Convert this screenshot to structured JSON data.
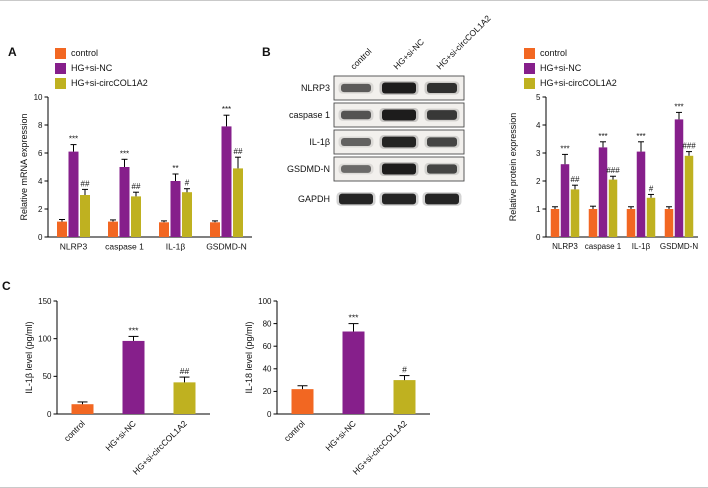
{
  "panel_labels": {
    "a": "A",
    "b": "B",
    "c": "C"
  },
  "colors": {
    "control": "#F26722",
    "hg_si_nc": "#861F8B",
    "hg_si_circcol1a2": "#BFB120",
    "axis": "#000000"
  },
  "legend": {
    "items": [
      {
        "label": "control",
        "color": "#F26722"
      },
      {
        "label": "HG+si-NC",
        "color": "#861F8B"
      },
      {
        "label": "HG+si-circCOL1A2",
        "color": "#BFB120"
      }
    ]
  },
  "western_blot": {
    "column_labels": [
      "control",
      "HG+si-NC",
      "HG+si-circCOL1A2"
    ],
    "rows": [
      {
        "label": "NLRP3",
        "boxed": true,
        "band_intensities": [
          0.55,
          1.0,
          0.85
        ]
      },
      {
        "label": "caspase 1",
        "boxed": true,
        "band_intensities": [
          0.6,
          1.0,
          0.8
        ]
      },
      {
        "label": "IL-1β",
        "boxed": true,
        "band_intensities": [
          0.5,
          0.95,
          0.7
        ]
      },
      {
        "label": "GSDMD-N",
        "boxed": true,
        "band_intensities": [
          0.45,
          1.0,
          0.7
        ]
      },
      {
        "label": "GAPDH",
        "boxed": false,
        "band_intensities": [
          0.95,
          0.95,
          0.95
        ]
      }
    ]
  },
  "chart_data": [
    {
      "id": "panel-A-mrna",
      "type": "bar",
      "title": "",
      "xlabel": "",
      "ylabel": "Relative mRNA expression",
      "ylim": [
        0,
        10
      ],
      "yticks": [
        0,
        2,
        4,
        6,
        8,
        10
      ],
      "grid": false,
      "legend_position": "top-left",
      "categories": [
        "NLRP3",
        "caspase 1",
        "IL-1β",
        "GSDMD-N"
      ],
      "series": [
        {
          "name": "control",
          "color": "#F26722",
          "values": [
            1.1,
            1.1,
            1.05,
            1.05
          ],
          "errors": [
            0.15,
            0.12,
            0.1,
            0.1
          ],
          "annotations": [
            "",
            "",
            "",
            ""
          ]
        },
        {
          "name": "HG+si-NC",
          "color": "#861F8B",
          "values": [
            6.1,
            5.0,
            4.0,
            7.9
          ],
          "errors": [
            0.5,
            0.55,
            0.5,
            0.8
          ],
          "annotations": [
            "***",
            "***",
            "**",
            "***"
          ]
        },
        {
          "name": "HG+si-circCOL1A2",
          "color": "#BFB120",
          "values": [
            3.0,
            2.9,
            3.2,
            4.9
          ],
          "errors": [
            0.4,
            0.3,
            0.25,
            0.8
          ],
          "annotations": [
            "##",
            "##",
            "#",
            "##"
          ]
        }
      ]
    },
    {
      "id": "panel-B-protein",
      "type": "bar",
      "title": "",
      "xlabel": "",
      "ylabel": "Relative protein expression",
      "ylim": [
        0,
        5
      ],
      "yticks": [
        0,
        1,
        2,
        3,
        4,
        5
      ],
      "grid": false,
      "legend_position": "top-left",
      "categories": [
        "NLRP3",
        "caspase 1",
        "IL-1β",
        "GSDMD-N"
      ],
      "series": [
        {
          "name": "control",
          "color": "#F26722",
          "values": [
            1.0,
            1.0,
            1.0,
            1.0
          ],
          "errors": [
            0.08,
            0.1,
            0.08,
            0.08
          ],
          "annotations": [
            "",
            "",
            "",
            ""
          ]
        },
        {
          "name": "HG+si-NC",
          "color": "#861F8B",
          "values": [
            2.6,
            3.2,
            3.05,
            4.2
          ],
          "errors": [
            0.35,
            0.2,
            0.35,
            0.25
          ],
          "annotations": [
            "***",
            "***",
            "***",
            "***"
          ]
        },
        {
          "name": "HG+si-circCOL1A2",
          "color": "#BFB120",
          "values": [
            1.7,
            2.05,
            1.4,
            2.9
          ],
          "errors": [
            0.15,
            0.12,
            0.12,
            0.15
          ],
          "annotations": [
            "##",
            "###",
            "#",
            "###"
          ]
        }
      ]
    },
    {
      "id": "panel-C-il1b",
      "type": "bar",
      "title": "",
      "xlabel": "",
      "ylabel": "IL-1β level (pg/ml)",
      "ylim": [
        0,
        150
      ],
      "yticks": [
        0,
        50,
        100,
        150
      ],
      "grid": false,
      "legend_position": "none",
      "rotate_xlabels": true,
      "categories": [
        "control",
        "HG+si-NC",
        "HG+si-circCOL1A2"
      ],
      "bar_colors": [
        "#F26722",
        "#861F8B",
        "#BFB120"
      ],
      "series": [
        {
          "name": "IL-1β level",
          "values": [
            13,
            97,
            42
          ],
          "errors": [
            3,
            6,
            7
          ],
          "annotations": [
            "",
            "***",
            "##"
          ]
        }
      ]
    },
    {
      "id": "panel-C-il18",
      "type": "bar",
      "title": "",
      "xlabel": "",
      "ylabel": "IL-18 level (pg/ml)",
      "ylim": [
        0,
        100
      ],
      "yticks": [
        0,
        20,
        40,
        60,
        80,
        100
      ],
      "grid": false,
      "legend_position": "none",
      "rotate_xlabels": true,
      "categories": [
        "control",
        "HG+si-NC",
        "HG+si-circCOL1A2"
      ],
      "bar_colors": [
        "#F26722",
        "#861F8B",
        "#BFB120"
      ],
      "series": [
        {
          "name": "IL-18 level",
          "values": [
            22,
            73,
            30
          ],
          "errors": [
            3,
            7,
            4
          ],
          "annotations": [
            "",
            "***",
            "#"
          ]
        }
      ]
    }
  ]
}
